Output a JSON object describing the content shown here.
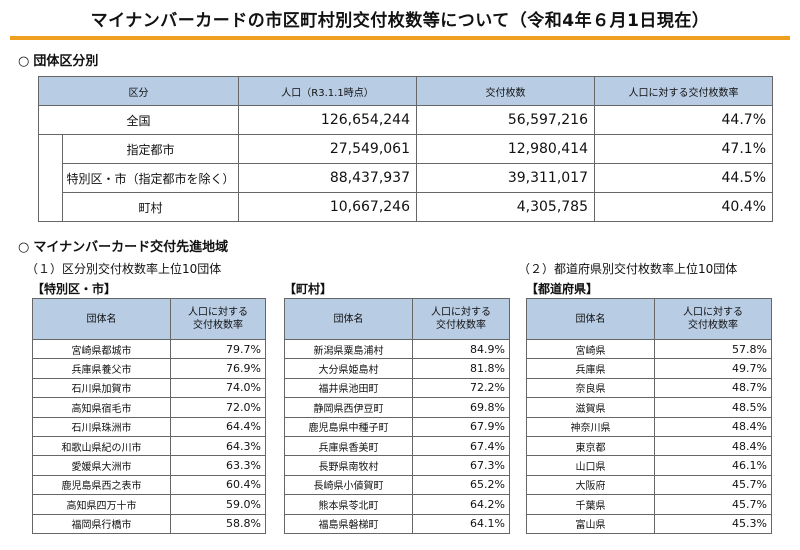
{
  "title": "マイナンバーカードの市区町村別交付枚数等について（令和4年６月1日現在）",
  "section1": {
    "marker": "○",
    "heading": "団体区分別",
    "headers": [
      "区分",
      "人口（R3.1.1時点）",
      "交付枚数",
      "人口に対する交付枚数率"
    ],
    "rows": [
      {
        "label": "全国",
        "population": "126,654,244",
        "issued": "56,597,216",
        "rate": "44.7%"
      },
      {
        "label": "指定都市",
        "population": "27,549,061",
        "issued": "12,980,414",
        "rate": "47.1%"
      },
      {
        "label": "特別区・市（指定都市を除く）",
        "population": "88,437,937",
        "issued": "39,311,017",
        "rate": "44.5%"
      },
      {
        "label": "町村",
        "population": "10,667,246",
        "issued": "4,305,785",
        "rate": "40.4%"
      }
    ]
  },
  "section2": {
    "marker": "○",
    "heading": "マイナンバーカード交付先進地域",
    "sub1": "（１）区分別交付枚数率上位10団体",
    "sub2": "（２）都道府県別交付枚数率上位10団体",
    "tables": [
      {
        "bracket": "【特別区・市】",
        "col_name": "団体名",
        "col_rate": "人口に対する\n交付枚数率",
        "rows": [
          {
            "name": "宮崎県都城市",
            "rate": "79.7%"
          },
          {
            "name": "兵庫県養父市",
            "rate": "76.9%"
          },
          {
            "name": "石川県加賀市",
            "rate": "74.0%"
          },
          {
            "name": "高知県宿毛市",
            "rate": "72.0%"
          },
          {
            "name": "石川県珠洲市",
            "rate": "64.4%"
          },
          {
            "name": "和歌山県紀の川市",
            "rate": "64.3%"
          },
          {
            "name": "愛媛県大洲市",
            "rate": "63.3%"
          },
          {
            "name": "鹿児島県西之表市",
            "rate": "60.4%"
          },
          {
            "name": "高知県四万十市",
            "rate": "59.0%"
          },
          {
            "name": "福岡県行橋市",
            "rate": "58.8%"
          }
        ]
      },
      {
        "bracket": "【町村】",
        "col_name": "団体名",
        "col_rate": "人口に対する\n交付枚数率",
        "rows": [
          {
            "name": "新潟県粟島浦村",
            "rate": "84.9%"
          },
          {
            "name": "大分県姫島村",
            "rate": "81.8%"
          },
          {
            "name": "福井県池田町",
            "rate": "72.2%"
          },
          {
            "name": "静岡県西伊豆町",
            "rate": "69.8%"
          },
          {
            "name": "鹿児島県中種子町",
            "rate": "67.9%"
          },
          {
            "name": "兵庫県香美町",
            "rate": "67.4%"
          },
          {
            "name": "長野県南牧村",
            "rate": "67.3%"
          },
          {
            "name": "長崎県小値賀町",
            "rate": "65.2%"
          },
          {
            "name": "熊本県苓北町",
            "rate": "64.2%"
          },
          {
            "name": "福島県磐梯町",
            "rate": "64.1%"
          }
        ]
      },
      {
        "bracket": "【都道府県】",
        "col_name": "団体名",
        "col_rate": "人口に対する\n交付枚数率",
        "rows": [
          {
            "name": "宮崎県",
            "rate": "57.8%"
          },
          {
            "name": "兵庫県",
            "rate": "49.7%"
          },
          {
            "name": "奈良県",
            "rate": "48.7%"
          },
          {
            "name": "滋賀県",
            "rate": "48.5%"
          },
          {
            "name": "神奈川県",
            "rate": "48.4%"
          },
          {
            "name": "東京都",
            "rate": "48.4%"
          },
          {
            "name": "山口県",
            "rate": "46.1%"
          },
          {
            "name": "大阪府",
            "rate": "45.7%"
          },
          {
            "name": "千葉県",
            "rate": "45.7%"
          },
          {
            "name": "富山県",
            "rate": "45.3%"
          }
        ]
      }
    ]
  }
}
